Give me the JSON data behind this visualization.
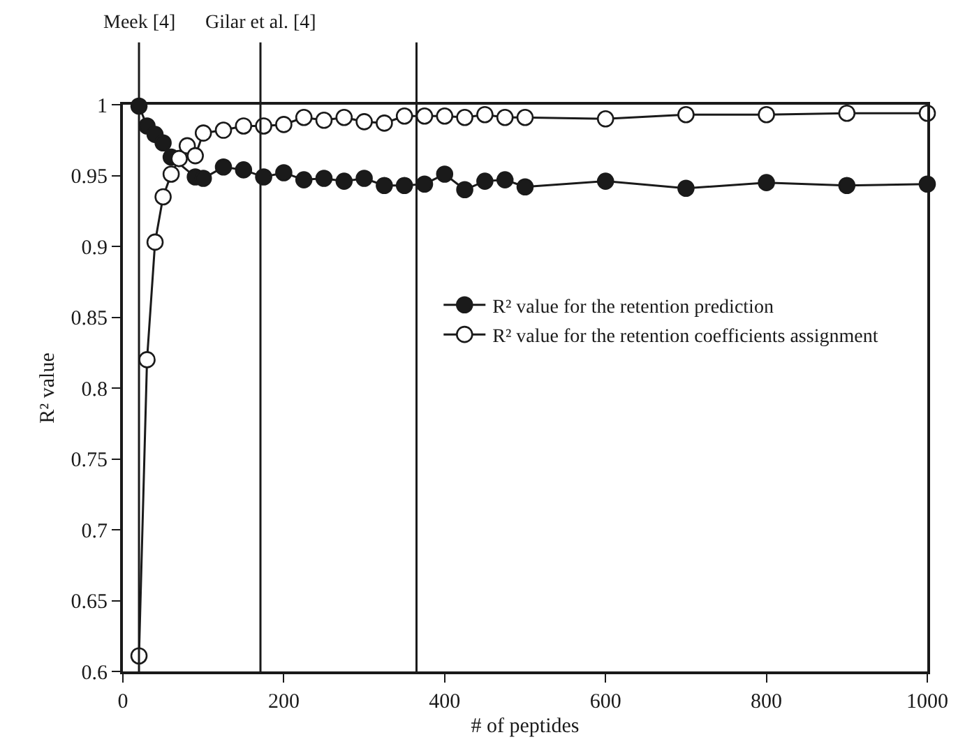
{
  "chart_data": {
    "type": "line",
    "xlabel": "# of peptides",
    "ylabel": "R² value",
    "xlim": [
      0,
      1000
    ],
    "xticks": [
      0,
      200,
      400,
      600,
      800,
      1000
    ],
    "ylim": [
      0.6,
      1
    ],
    "yticks": [
      0.6,
      0.65,
      0.7,
      0.75,
      0.8,
      0.85,
      0.9,
      0.95,
      1
    ],
    "legend": "right",
    "line_style": "solid",
    "series": [
      {
        "name": "R² value for the retention prediction",
        "color": "#1a1a1a",
        "marker": "circle",
        "x": [
          20,
          30,
          40,
          50,
          60,
          90,
          100,
          125,
          150,
          175,
          200,
          225,
          250,
          275,
          300,
          325,
          350,
          375,
          400,
          425,
          450,
          475,
          500,
          600,
          700,
          800,
          900,
          1000
        ],
        "values": [
          0.999,
          0.985,
          0.979,
          0.973,
          0.963,
          0.949,
          0.948,
          0.956,
          0.954,
          0.949,
          0.952,
          0.947,
          0.948,
          0.946,
          0.948,
          0.943,
          0.943,
          0.944,
          0.951,
          0.94,
          0.946,
          0.947,
          0.942,
          0.946,
          0.941,
          0.945,
          0.943,
          0.944
        ]
      },
      {
        "name": "R² value for the retention coefficients assignment",
        "color": "#1a1a1a",
        "marker": "circle-open",
        "x": [
          20,
          30,
          40,
          50,
          60,
          70,
          80,
          90,
          100,
          125,
          150,
          175,
          200,
          225,
          250,
          275,
          300,
          325,
          350,
          375,
          400,
          425,
          450,
          475,
          500,
          600,
          700,
          800,
          900,
          1000
        ],
        "values": [
          0.611,
          0.82,
          0.903,
          0.935,
          0.951,
          0.962,
          0.971,
          0.964,
          0.98,
          0.982,
          0.985,
          0.985,
          0.986,
          0.991,
          0.989,
          0.991,
          0.988,
          0.987,
          0.992,
          0.992,
          0.992,
          0.991,
          0.993,
          0.991,
          0.991,
          0.99,
          0.993,
          0.993,
          0.994,
          0.994
        ]
      }
    ],
    "ref_lines": [
      {
        "axis": "x",
        "value": 20,
        "label": "Meek [4]"
      },
      {
        "axis": "x",
        "value": 171,
        "label": "Gilar et al. [4]"
      },
      {
        "axis": "x",
        "value": 365
      }
    ]
  }
}
